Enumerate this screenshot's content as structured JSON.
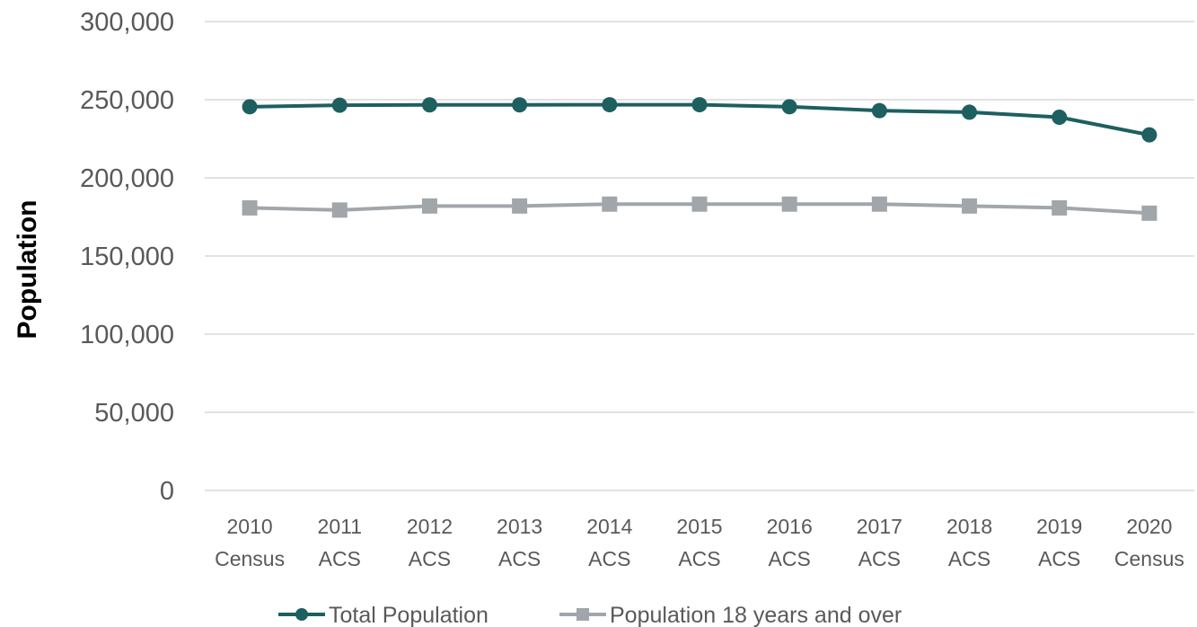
{
  "chart_data": {
    "type": "line",
    "ylabel": "Population",
    "xlabel": "",
    "ylim": [
      0,
      300000
    ],
    "yticks": [
      0,
      50000,
      100000,
      150000,
      200000,
      250000,
      300000
    ],
    "ytick_labels": [
      "0",
      "50,000",
      "100,000",
      "150,000",
      "200,000",
      "250,000",
      "300,000"
    ],
    "categories": [
      [
        "2010",
        "Census"
      ],
      [
        "2011",
        "ACS"
      ],
      [
        "2012",
        "ACS"
      ],
      [
        "2013",
        "ACS"
      ],
      [
        "2014",
        "ACS"
      ],
      [
        "2015",
        "ACS"
      ],
      [
        "2016",
        "ACS"
      ],
      [
        "2017",
        "ACS"
      ],
      [
        "2018",
        "ACS"
      ],
      [
        "2019",
        "ACS"
      ],
      [
        "2020",
        "Census"
      ]
    ],
    "grid": true,
    "legend_position": "bottom",
    "series": [
      {
        "name": "Total Population",
        "color": "#1e5f60",
        "marker": "circle",
        "values": [
          245500,
          246500,
          246700,
          246700,
          246800,
          246800,
          245500,
          243000,
          242000,
          238800,
          227500
        ]
      },
      {
        "name": "Population 18 years and over",
        "color": "#a1a6ab",
        "marker": "square",
        "values": [
          180800,
          179400,
          182000,
          182000,
          183200,
          183200,
          183200,
          183200,
          182000,
          180800,
          177400
        ]
      }
    ]
  }
}
